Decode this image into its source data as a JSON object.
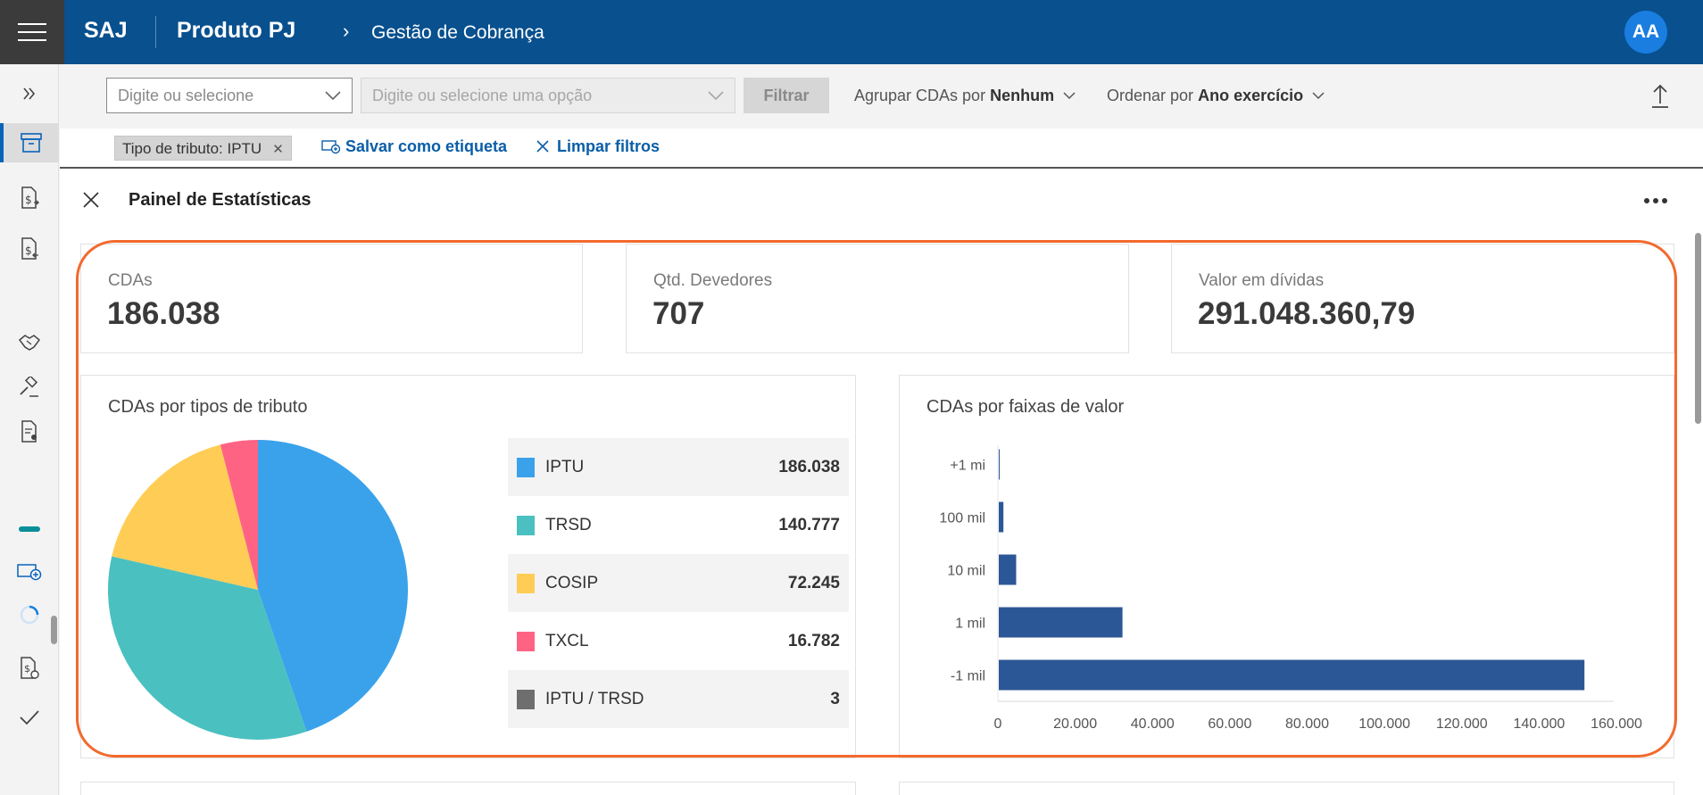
{
  "header": {
    "brand": "SAJ",
    "product": "Produto PJ",
    "breadcrumb": "Gestão de Cobrança",
    "avatar": "AA"
  },
  "rail": {
    "icons": [
      "expand-icon",
      "archive-icon",
      "document-money-export-icon",
      "document-money-import-icon",
      "handshake-icon",
      "gavel-icon",
      "document-user-icon",
      "progress-bar-icon",
      "add-card-icon",
      "loading-icon",
      "document-settings-icon",
      "check-icon"
    ]
  },
  "filters": {
    "select1_placeholder": "Digite ou selecione",
    "select2_placeholder": "Digite ou selecione uma opção",
    "filter_button": "Filtrar",
    "group_label": "Agrupar CDAs por",
    "group_value": "Nenhum",
    "order_label": "Ordenar por",
    "order_value": "Ano exercício"
  },
  "chips": {
    "active_filter": "Tipo de tributo: IPTU",
    "save_tag": "Salvar como etiqueta",
    "clear_filters": "Limpar filtros"
  },
  "panel": {
    "title": "Painel de Estatísticas",
    "kpis": [
      {
        "label": "CDAs",
        "value": "186.038"
      },
      {
        "label": "Qtd. Devedores",
        "value": "707"
      },
      {
        "label": "Valor em dívidas",
        "value": "291.048.360,79"
      }
    ],
    "pie_card_title": "CDAs por tipos de tributo",
    "bar_card_title": "CDAs por faixas de valor",
    "legend": [
      {
        "label": "IPTU",
        "value": "186.038",
        "color": "#3aa2eb"
      },
      {
        "label": "TRSD",
        "value": "140.777",
        "color": "#4bc0c0"
      },
      {
        "label": "COSIP",
        "value": "72.245",
        "color": "#ffcd56"
      },
      {
        "label": "TXCL",
        "value": "16.782",
        "color": "#ff6384"
      },
      {
        "label": "IPTU / TRSD",
        "value": "3",
        "color": "#6e6e6e"
      }
    ]
  },
  "chart_data": [
    {
      "type": "pie",
      "title": "CDAs por tipos de tributo",
      "categories": [
        "IPTU",
        "TRSD",
        "COSIP",
        "TXCL",
        "IPTU / TRSD"
      ],
      "values": [
        186038,
        140777,
        72245,
        16782,
        3
      ],
      "colors": [
        "#3aa2eb",
        "#4bc0c0",
        "#ffcd56",
        "#ff6384",
        "#6e6e6e"
      ]
    },
    {
      "type": "bar",
      "orientation": "horizontal",
      "title": "CDAs por faixas de valor",
      "categories": [
        "+1 mi",
        "100 mil",
        "10 mil",
        "1 mil",
        "-1 mil"
      ],
      "values": [
        80,
        1200,
        4500,
        32000,
        151500
      ],
      "xlim": [
        0,
        160000
      ],
      "ticks": [
        0,
        20000,
        40000,
        60000,
        80000,
        100000,
        120000,
        140000,
        160000
      ],
      "tick_labels": [
        "0",
        "20.000",
        "40.000",
        "60.000",
        "80.000",
        "100.000",
        "120.000",
        "140.000",
        "160.000"
      ],
      "color": "#2c5796"
    }
  ]
}
